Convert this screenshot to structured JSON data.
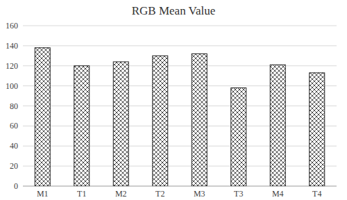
{
  "chart_data": {
    "type": "bar",
    "title": "RGB Mean Value",
    "categories": [
      "M1",
      "T1",
      "M2",
      "T2",
      "M3",
      "T3",
      "M4",
      "T4"
    ],
    "values": [
      138,
      120,
      124,
      130,
      132,
      98,
      121,
      113
    ],
    "color": "#222222",
    "ylim": [
      0,
      160
    ],
    "yticks": [
      0,
      20,
      40,
      60,
      80,
      100,
      120,
      140,
      160
    ],
    "grid": true
  }
}
